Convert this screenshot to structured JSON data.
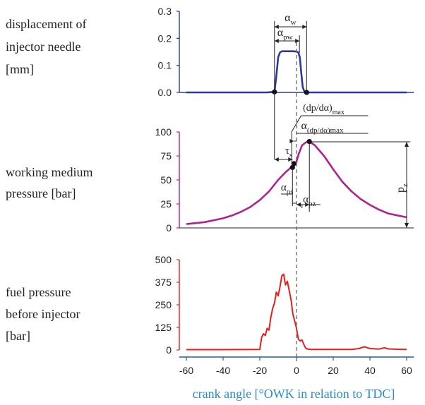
{
  "chart_data": [
    {
      "type": "line",
      "ylabel": "displacement of injector needle [mm]",
      "ylim": [
        0,
        0.3
      ],
      "yticks": [
        "0.0",
        "0.1",
        "0.2",
        "0.3"
      ],
      "series_color": "#2b3a9c",
      "x": [
        -60,
        -30,
        -16,
        -12,
        -11,
        -10,
        -9,
        -8,
        -7,
        -5,
        -2,
        0,
        1,
        1.8,
        2.6,
        3.4,
        4.2,
        5,
        7,
        10,
        30,
        60
      ],
      "y": [
        0,
        0,
        0,
        0.002,
        0.06,
        0.13,
        0.148,
        0.152,
        0.152,
        0.152,
        0.152,
        0.151,
        0.148,
        0.13,
        0.07,
        0.02,
        0.005,
        0.001,
        0,
        0,
        0,
        0
      ],
      "points": [
        {
          "x": -12,
          "y": 0.002
        },
        {
          "x": 5.5,
          "y": 0
        }
      ],
      "annotations": {
        "alpha_w": {
          "main": "α",
          "sub": "w"
        },
        "alpha_pw": {
          "main": "α",
          "sub": "pw"
        }
      }
    },
    {
      "type": "line",
      "ylabel": "working medium pressure [bar]",
      "ylim": [
        0,
        100
      ],
      "yticks": [
        "0",
        "25",
        "50",
        "75",
        "100"
      ],
      "series_color": "#b0228c",
      "x": [
        -60,
        -55,
        -50,
        -45,
        -40,
        -35,
        -30,
        -25,
        -20,
        -15,
        -10,
        -6,
        -3,
        -1,
        0,
        1,
        3,
        5,
        6,
        7,
        10,
        15,
        20,
        25,
        30,
        35,
        40,
        45,
        50,
        55,
        60
      ],
      "y": [
        4,
        5,
        6,
        8,
        10,
        13,
        17,
        22,
        29,
        38,
        50,
        58,
        63,
        66,
        69,
        76,
        86,
        89,
        90,
        90,
        86,
        75,
        61,
        48,
        38,
        30,
        24,
        19,
        15,
        13,
        11
      ],
      "points": [
        {
          "x": -2.2,
          "y": 63
        },
        {
          "x": -1.4,
          "y": 67
        },
        {
          "x": 7,
          "y": 90
        }
      ],
      "annotations": {
        "dpda_max": {
          "main": "(dp/dα)",
          "sub": "max"
        },
        "alpha_dpda_max": {
          "main": "α",
          "sub": "(dp/dα)max"
        },
        "tau_s": {
          "main": "τ",
          "sub": "s"
        },
        "alpha_ps": {
          "main": "α",
          "sub": "ps"
        },
        "alpha_pz": {
          "main": "α",
          "sub": "pz"
        },
        "p_z": {
          "main": "p",
          "sub": "z"
        }
      }
    },
    {
      "type": "line",
      "ylabel": "fuel pressure before injector [bar]",
      "ylim": [
        0,
        500
      ],
      "yticks": [
        "0",
        "125",
        "250",
        "375",
        "500"
      ],
      "series_color": "#e32020",
      "x": [
        -60,
        -40,
        -20,
        -19,
        -18,
        -17,
        -16,
        -15,
        -14,
        -13,
        -12,
        -11,
        -10,
        -9,
        -8,
        -7,
        -6,
        -5,
        -4,
        -3,
        -2,
        -1,
        0,
        1,
        2,
        3,
        4,
        5,
        6,
        8,
        30,
        34,
        37,
        40,
        45,
        48,
        50,
        55,
        60
      ],
      "y": [
        2,
        2,
        3,
        70,
        90,
        80,
        120,
        110,
        180,
        230,
        260,
        320,
        300,
        350,
        410,
        420,
        360,
        380,
        330,
        280,
        200,
        160,
        120,
        60,
        50,
        55,
        30,
        10,
        5,
        3,
        3,
        8,
        18,
        8,
        5,
        12,
        6,
        4,
        3
      ],
      "points": []
    }
  ],
  "x_axis": {
    "ticks": [
      "-60",
      "-40",
      "-20",
      "0",
      "20",
      "40",
      "60"
    ],
    "values": [
      -60,
      -40,
      -20,
      0,
      20,
      40,
      60
    ],
    "label": "crank angle [°OWK in relation to TDC]",
    "color": "#2a8bc9"
  },
  "labels": {
    "panel1_line1": "displacement of",
    "panel1_line2": "injector needle",
    "panel1_line3": "[mm]",
    "panel2_line1": "working medium",
    "panel2_line2": "pressure [bar]",
    "panel3_line1": "fuel pressure",
    "panel3_line2": "before injector",
    "panel3_line3": "[bar]"
  }
}
